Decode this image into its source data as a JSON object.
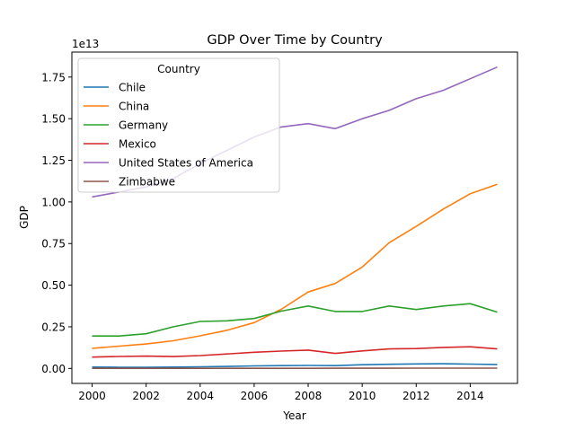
{
  "chart_data": {
    "type": "line",
    "title": "GDP Over Time by Country",
    "xlabel": "Year",
    "ylabel": "GDP",
    "offset_label": "1e13",
    "x": [
      2000,
      2001,
      2002,
      2003,
      2004,
      2005,
      2006,
      2007,
      2008,
      2009,
      2010,
      2011,
      2012,
      2013,
      2014,
      2015
    ],
    "xlim": [
      1999.25,
      2015.75
    ],
    "ylim": [
      -0.09,
      1.9
    ],
    "y_multiplier": 10000000000000.0,
    "xticks": [
      2000,
      2002,
      2004,
      2006,
      2008,
      2010,
      2012,
      2014
    ],
    "xtick_labels": [
      "2000",
      "2002",
      "2004",
      "2006",
      "2008",
      "2010",
      "2012",
      "2014"
    ],
    "yticks": [
      0.0,
      0.25,
      0.5,
      0.75,
      1.0,
      1.25,
      1.5,
      1.75
    ],
    "ytick_labels": [
      "0.00",
      "0.25",
      "0.50",
      "0.75",
      "1.00",
      "1.25",
      "1.50",
      "1.75"
    ],
    "grid": false,
    "legend": {
      "title": "Country",
      "placement": "top-left"
    },
    "series": [
      {
        "name": "Chile",
        "color": "#1f77b4",
        "values": [
          0.008,
          0.007,
          0.007,
          0.008,
          0.01,
          0.012,
          0.015,
          0.017,
          0.018,
          0.017,
          0.022,
          0.025,
          0.027,
          0.028,
          0.026,
          0.024
        ]
      },
      {
        "name": "China",
        "color": "#ff7f0e",
        "values": [
          0.121,
          0.134,
          0.147,
          0.166,
          0.196,
          0.229,
          0.275,
          0.355,
          0.459,
          0.51,
          0.609,
          0.755,
          0.853,
          0.957,
          1.049,
          1.106
        ]
      },
      {
        "name": "Germany",
        "color": "#2ca02c",
        "values": [
          0.195,
          0.195,
          0.208,
          0.25,
          0.282,
          0.286,
          0.3,
          0.344,
          0.375,
          0.342,
          0.342,
          0.375,
          0.354,
          0.375,
          0.389,
          0.338
        ]
      },
      {
        "name": "Mexico",
        "color": "#d62728",
        "values": [
          0.068,
          0.072,
          0.074,
          0.071,
          0.077,
          0.087,
          0.097,
          0.104,
          0.11,
          0.09,
          0.105,
          0.117,
          0.119,
          0.126,
          0.13,
          0.117
        ]
      },
      {
        "name": "United States of America",
        "color": "#9467bd",
        "values": [
          1.03,
          1.06,
          1.09,
          1.14,
          1.23,
          1.31,
          1.39,
          1.45,
          1.47,
          1.44,
          1.5,
          1.55,
          1.62,
          1.67,
          1.74,
          1.81
        ]
      },
      {
        "name": "Zimbabwe",
        "color": "#8c564b",
        "values": [
          0.0007,
          0.0007,
          0.0006,
          0.0006,
          0.0006,
          0.0006,
          0.0005,
          0.0005,
          0.0004,
          0.001,
          0.0012,
          0.0014,
          0.0016,
          0.0017,
          0.0018,
          0.0019
        ]
      }
    ]
  }
}
